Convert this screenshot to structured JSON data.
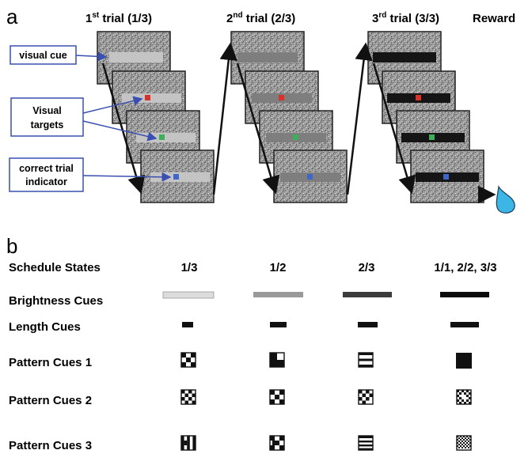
{
  "panel_a": {
    "letter": "a",
    "trials": [
      {
        "pre": "1",
        "sup": "st",
        "post": " trial (1/3)"
      },
      {
        "pre": "2",
        "sup": "nd",
        "post": " trial (2/3)"
      },
      {
        "pre": "3",
        "sup": "rd",
        "post": " trial (3/3)"
      }
    ],
    "reward": "Reward",
    "callouts": {
      "visual_cue": "visual cue",
      "visual_targets_1": "Visual",
      "visual_targets_2": "targets",
      "correct_1": "correct trial",
      "correct_2": "indicator"
    }
  },
  "panel_b": {
    "letter": "b",
    "header_label": "Schedule States",
    "columns": [
      "1/3",
      "1/2",
      "2/3",
      "1/1, 2/2, 3/3"
    ],
    "rows": [
      "Brightness Cues",
      "Length Cues",
      "Pattern Cues 1",
      "Pattern Cues 2",
      "Pattern Cues 3"
    ]
  },
  "colors": {
    "target_red": "#d8322a",
    "target_green": "#3fae5a",
    "target_blue": "#3f67c8",
    "callout_blue": "#3a4fb0",
    "water_drop": "#3db6e6"
  }
}
